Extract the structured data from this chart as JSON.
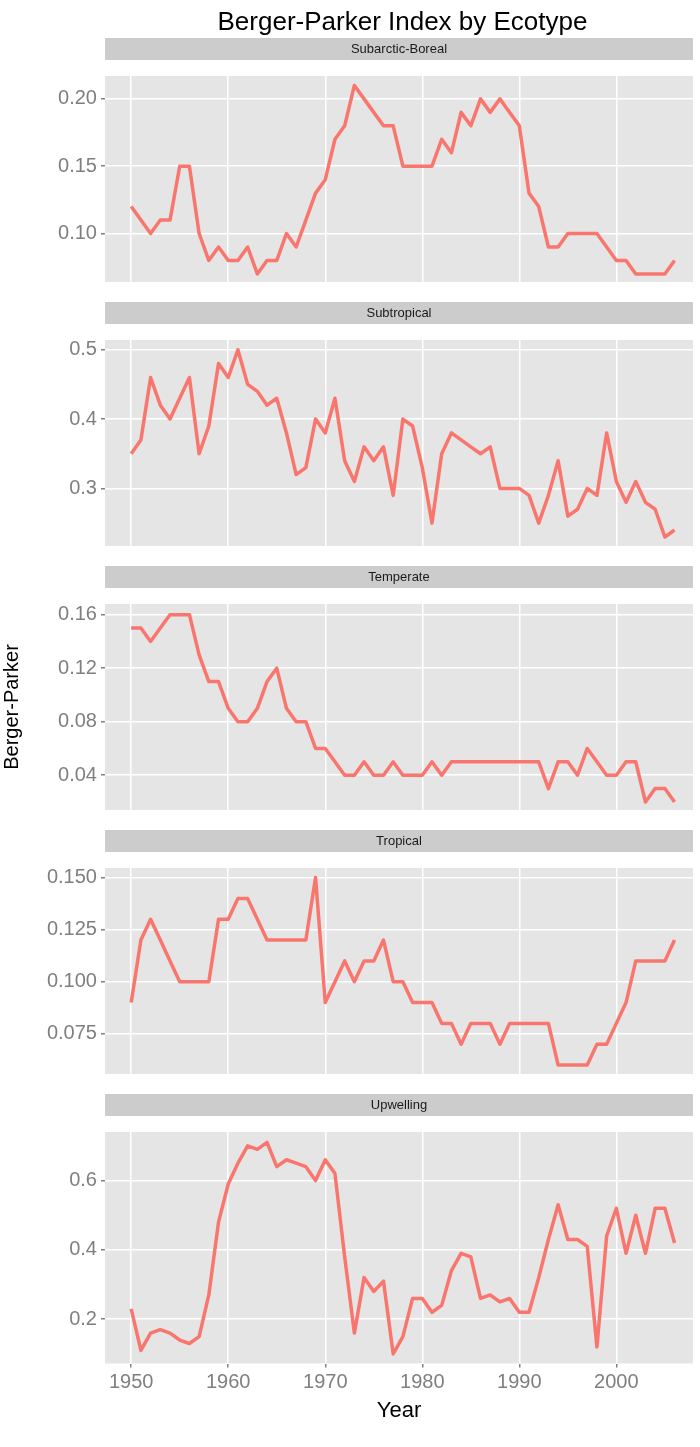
{
  "chart_data": [
    {
      "type": "line",
      "title": "Berger-Parker Index by Ecotype",
      "subtitle": "Subarctic-Boreal",
      "grid": true,
      "tick_labels": "y",
      "xlim": [
        1947.3,
        2007.9
      ],
      "xticks": [
        1950,
        1960,
        1970,
        1980,
        1990,
        2000
      ],
      "ylim": [
        0.064,
        0.217
      ],
      "yticks": [
        {
          "value": 0.1,
          "label": "0.10"
        },
        {
          "value": 0.15,
          "label": "0.15"
        },
        {
          "value": 0.2,
          "label": "0.20"
        }
      ],
      "x": [
        1950,
        1951,
        1952,
        1953,
        1954,
        1955,
        1956,
        1957,
        1958,
        1959,
        1960,
        1961,
        1962,
        1963,
        1964,
        1965,
        1966,
        1967,
        1968,
        1969,
        1970,
        1971,
        1972,
        1973,
        1974,
        1975,
        1976,
        1977,
        1978,
        1979,
        1980,
        1981,
        1982,
        1983,
        1984,
        1985,
        1986,
        1987,
        1988,
        1989,
        1990,
        1991,
        1992,
        1993,
        1994,
        1995,
        1996,
        1997,
        1998,
        1999,
        2000,
        2001,
        2002,
        2003,
        2004,
        2005,
        2006
      ],
      "series": [
        {
          "color": "#f8766d",
          "values": [
            0.12,
            0.11,
            0.1,
            0.11,
            0.11,
            0.15,
            0.15,
            0.1,
            0.08,
            0.09,
            0.08,
            0.08,
            0.09,
            0.07,
            0.08,
            0.08,
            0.1,
            0.09,
            0.11,
            0.13,
            0.14,
            0.17,
            0.18,
            0.21,
            0.2,
            0.19,
            0.18,
            0.18,
            0.15,
            0.15,
            0.15,
            0.15,
            0.17,
            0.16,
            0.19,
            0.18,
            0.2,
            0.19,
            0.2,
            0.19,
            0.18,
            0.13,
            0.12,
            0.09,
            0.09,
            0.1,
            0.1,
            0.1,
            0.1,
            0.09,
            0.08,
            0.08,
            0.07,
            0.07,
            0.07,
            0.07,
            0.08
          ]
        }
      ]
    },
    {
      "type": "line",
      "subtitle": "Subtropical",
      "grid": true,
      "tick_labels": "y",
      "xlim": [
        1947.3,
        2007.9
      ],
      "xticks": [
        1950,
        1960,
        1970,
        1980,
        1990,
        2000
      ],
      "ylim": [
        0.217,
        0.514
      ],
      "yticks": [
        0.3,
        0.4,
        0.5
      ],
      "x": [
        1950,
        1951,
        1952,
        1953,
        1954,
        1955,
        1956,
        1957,
        1958,
        1959,
        1960,
        1961,
        1962,
        1963,
        1964,
        1965,
        1966,
        1967,
        1968,
        1969,
        1970,
        1971,
        1972,
        1973,
        1974,
        1975,
        1976,
        1977,
        1978,
        1979,
        1980,
        1981,
        1982,
        1983,
        1984,
        1985,
        1986,
        1987,
        1988,
        1989,
        1990,
        1991,
        1992,
        1993,
        1994,
        1995,
        1996,
        1997,
        1998,
        1999,
        2000,
        2001,
        2002,
        2003,
        2004,
        2005,
        2006
      ],
      "series": [
        {
          "color": "#f8766d",
          "values": [
            0.35,
            0.37,
            0.46,
            0.42,
            0.4,
            0.43,
            0.46,
            0.35,
            0.39,
            0.48,
            0.46,
            0.5,
            0.45,
            0.44,
            0.42,
            0.43,
            0.38,
            0.32,
            0.33,
            0.4,
            0.38,
            0.43,
            0.34,
            0.31,
            0.36,
            0.34,
            0.36,
            0.29,
            0.4,
            0.39,
            0.33,
            0.25,
            0.35,
            0.38,
            0.37,
            0.36,
            0.35,
            0.36,
            0.3,
            0.3,
            0.3,
            0.29,
            0.25,
            0.29,
            0.34,
            0.26,
            0.27,
            0.3,
            0.29,
            0.38,
            0.31,
            0.28,
            0.31,
            0.28,
            0.27,
            0.23,
            0.24
          ]
        }
      ]
    },
    {
      "type": "line",
      "subtitle": "Temperate",
      "ylabel": "Berger-Parker",
      "grid": true,
      "tick_labels": "y",
      "xlim": [
        1947.3,
        2007.9
      ],
      "xticks": [
        1950,
        1960,
        1970,
        1980,
        1990,
        2000
      ],
      "ylim": [
        0.014,
        0.168
      ],
      "yticks": [
        0.04,
        0.08,
        0.12,
        0.16
      ],
      "x": [
        1950,
        1951,
        1952,
        1953,
        1954,
        1955,
        1956,
        1957,
        1958,
        1959,
        1960,
        1961,
        1962,
        1963,
        1964,
        1965,
        1966,
        1967,
        1968,
        1969,
        1970,
        1971,
        1972,
        1973,
        1974,
        1975,
        1976,
        1977,
        1978,
        1979,
        1980,
        1981,
        1982,
        1983,
        1984,
        1985,
        1986,
        1987,
        1988,
        1989,
        1990,
        1991,
        1992,
        1993,
        1994,
        1995,
        1996,
        1997,
        1998,
        1999,
        2000,
        2001,
        2002,
        2003,
        2004,
        2005,
        2006
      ],
      "series": [
        {
          "color": "#f8766d",
          "values": [
            0.15,
            0.15,
            0.14,
            0.15,
            0.16,
            0.16,
            0.16,
            0.13,
            0.11,
            0.11,
            0.09,
            0.08,
            0.08,
            0.09,
            0.11,
            0.12,
            0.09,
            0.08,
            0.08,
            0.06,
            0.06,
            0.05,
            0.04,
            0.04,
            0.05,
            0.04,
            0.04,
            0.05,
            0.04,
            0.04,
            0.04,
            0.05,
            0.04,
            0.05,
            0.05,
            0.05,
            0.05,
            0.05,
            0.05,
            0.05,
            0.05,
            0.05,
            0.05,
            0.03,
            0.05,
            0.05,
            0.04,
            0.06,
            0.05,
            0.04,
            0.04,
            0.05,
            0.05,
            0.02,
            0.03,
            0.03,
            0.02
          ]
        }
      ]
    },
    {
      "type": "line",
      "subtitle": "Tropical",
      "grid": true,
      "tick_labels": "y",
      "xlim": [
        1947.3,
        2007.9
      ],
      "xticks": [
        1950,
        1960,
        1970,
        1980,
        1990,
        2000
      ],
      "ylim": [
        0.0557,
        0.1546
      ],
      "yticks": [
        {
          "value": 0.075,
          "label": "0.075"
        },
        {
          "value": 0.1,
          "label": "0.100"
        },
        {
          "value": 0.125,
          "label": "0.125"
        },
        {
          "value": 0.15,
          "label": "0.150"
        }
      ],
      "x": [
        1950,
        1951,
        1952,
        1953,
        1954,
        1955,
        1956,
        1957,
        1958,
        1959,
        1960,
        1961,
        1962,
        1963,
        1964,
        1965,
        1966,
        1967,
        1968,
        1969,
        1970,
        1971,
        1972,
        1973,
        1974,
        1975,
        1976,
        1977,
        1978,
        1979,
        1980,
        1981,
        1982,
        1983,
        1984,
        1985,
        1986,
        1987,
        1988,
        1989,
        1990,
        1991,
        1992,
        1993,
        1994,
        1995,
        1996,
        1997,
        1998,
        1999,
        2000,
        2001,
        2002,
        2003,
        2004,
        2005,
        2006
      ],
      "series": [
        {
          "color": "#f8766d",
          "values": [
            0.09,
            0.12,
            0.13,
            0.12,
            0.11,
            0.1,
            0.1,
            0.1,
            0.1,
            0.13,
            0.13,
            0.14,
            0.14,
            0.13,
            0.12,
            0.12,
            0.12,
            0.12,
            0.12,
            0.15,
            0.09,
            0.1,
            0.11,
            0.1,
            0.11,
            0.11,
            0.12,
            0.1,
            0.1,
            0.09,
            0.09,
            0.09,
            0.08,
            0.08,
            0.07,
            0.08,
            0.08,
            0.08,
            0.07,
            0.08,
            0.08,
            0.08,
            0.08,
            0.08,
            0.06,
            0.06,
            0.06,
            0.06,
            0.07,
            0.07,
            0.08,
            0.09,
            0.11,
            0.11,
            0.11,
            0.11,
            0.12
          ]
        }
      ]
    },
    {
      "type": "line",
      "subtitle": "Upwelling",
      "xlabel": "Year",
      "grid": true,
      "xlim": [
        1947.3,
        2007.9
      ],
      "xticks": [
        1950,
        1960,
        1970,
        1980,
        1990,
        2000
      ],
      "ylim": [
        0.072,
        0.74
      ],
      "yticks": [
        0.2,
        0.4,
        0.6
      ],
      "x": [
        1950,
        1951,
        1952,
        1953,
        1954,
        1955,
        1956,
        1957,
        1958,
        1959,
        1960,
        1961,
        1962,
        1963,
        1964,
        1965,
        1966,
        1967,
        1968,
        1969,
        1970,
        1971,
        1972,
        1973,
        1974,
        1975,
        1976,
        1977,
        1978,
        1979,
        1980,
        1981,
        1982,
        1983,
        1984,
        1985,
        1986,
        1987,
        1988,
        1989,
        1990,
        1991,
        1992,
        1993,
        1994,
        1995,
        1996,
        1997,
        1998,
        1999,
        2000,
        2001,
        2002,
        2003,
        2004,
        2005,
        2006
      ],
      "series": [
        {
          "color": "#f8766d",
          "values": [
            0.23,
            0.11,
            0.16,
            0.17,
            0.16,
            0.14,
            0.13,
            0.15,
            0.27,
            0.48,
            0.59,
            0.65,
            0.7,
            0.69,
            0.71,
            0.64,
            0.66,
            0.65,
            0.64,
            0.6,
            0.66,
            0.62,
            0.38,
            0.16,
            0.32,
            0.28,
            0.31,
            0.1,
            0.15,
            0.26,
            0.26,
            0.22,
            0.24,
            0.34,
            0.39,
            0.38,
            0.26,
            0.27,
            0.25,
            0.26,
            0.22,
            0.22,
            0.32,
            0.43,
            0.53,
            0.43,
            0.43,
            0.41,
            0.12,
            0.44,
            0.52,
            0.39,
            0.5,
            0.39,
            0.52,
            0.52,
            0.42
          ]
        }
      ]
    }
  ]
}
